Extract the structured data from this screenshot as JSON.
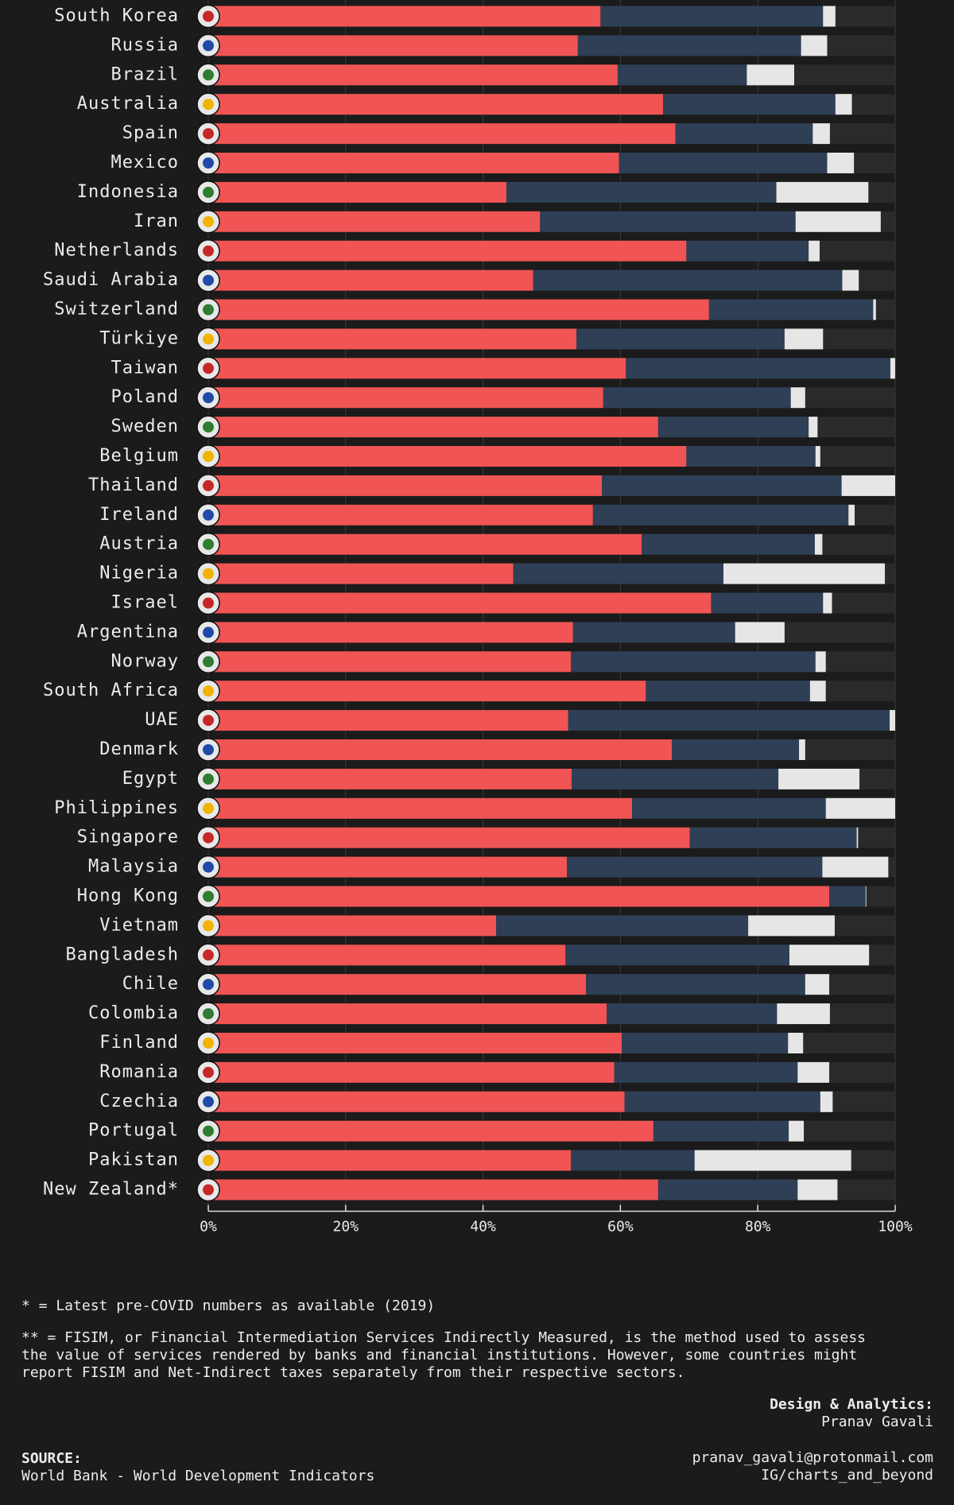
{
  "chart_data": {
    "type": "stacked-bar",
    "orientation": "horizontal",
    "categories": [
      "South Korea",
      "Russia",
      "Brazil",
      "Australia",
      "Spain",
      "Mexico",
      "Indonesia",
      "Iran",
      "Netherlands",
      "Saudi Arabia",
      "Switzerland",
      "Türkiye",
      "Taiwan",
      "Poland",
      "Sweden",
      "Belgium",
      "Thailand",
      "Ireland",
      "Austria",
      "Nigeria",
      "Israel",
      "Argentina",
      "Norway",
      "South Africa",
      "UAE",
      "Denmark",
      "Egypt",
      "Philippines",
      "Singapore",
      "Malaysia",
      "Hong Kong",
      "Vietnam",
      "Bangladesh",
      "Chile",
      "Colombia",
      "Finland",
      "Romania",
      "Czechia",
      "Portugal",
      "Pakistan",
      "New Zealand*"
    ],
    "series": [
      {
        "color": "#f05454",
        "values": [
          57.1,
          53.8,
          59.6,
          66.2,
          68.0,
          59.8,
          43.4,
          48.3,
          69.6,
          47.3,
          72.9,
          53.6,
          60.8,
          57.5,
          65.5,
          69.6,
          57.3,
          56.0,
          63.1,
          44.4,
          73.2,
          53.1,
          52.8,
          63.7,
          52.4,
          67.5,
          52.9,
          61.7,
          70.1,
          52.2,
          90.4,
          41.9,
          52.0,
          55.0,
          58.0,
          60.2,
          59.1,
          60.6,
          64.8,
          52.8,
          65.5
        ]
      },
      {
        "color": "#2e3f56",
        "values": [
          32.4,
          32.5,
          18.8,
          25.1,
          20.0,
          30.3,
          39.3,
          37.2,
          17.8,
          45.0,
          23.9,
          30.3,
          38.5,
          27.3,
          21.9,
          18.8,
          34.9,
          37.2,
          25.2,
          30.6,
          16.3,
          23.6,
          35.6,
          23.9,
          46.8,
          18.5,
          30.1,
          28.2,
          24.3,
          37.2,
          5.3,
          36.7,
          32.6,
          31.9,
          24.8,
          24.2,
          26.7,
          28.5,
          19.7,
          18.0,
          20.3
        ]
      },
      {
        "color": "#e6e6e6",
        "values": [
          1.8,
          3.8,
          6.9,
          2.4,
          2.5,
          3.9,
          13.4,
          12.4,
          1.6,
          2.4,
          0.4,
          5.6,
          0.7,
          2.1,
          1.3,
          0.7,
          7.8,
          0.9,
          1.1,
          23.5,
          1.3,
          7.2,
          1.5,
          2.3,
          0.8,
          0.9,
          11.8,
          10.1,
          0.2,
          9.6,
          0.1,
          12.6,
          11.6,
          3.5,
          7.7,
          2.2,
          4.6,
          1.8,
          2.2,
          22.8,
          5.8
        ]
      }
    ],
    "xlim": [
      0,
      100
    ],
    "xticks": [
      {
        "value": 0,
        "label": "0%"
      },
      {
        "value": 20,
        "label": "20%"
      },
      {
        "value": 40,
        "label": "40%"
      },
      {
        "value": 60,
        "label": "60%"
      },
      {
        "value": 80,
        "label": "80%"
      },
      {
        "value": 100,
        "label": "100%"
      }
    ],
    "grid": true,
    "footnotes": [
      "* = Latest pre-COVID numbers as available (2019)",
      "** = FISIM, or Financial Intermediation Services Indirectly Measured, is the method used to assess",
      "the value of services rendered by banks and financial institutions. However, some countries might",
      "report FISIM and Net-Indirect taxes separately from their respective sectors."
    ],
    "credit_label": "Design & Analytics:",
    "credit_name": "Pranav Gavali",
    "contact": [
      "pranav_gavali@protonmail.com",
      "IG/charts_and_beyond"
    ],
    "source_label": "SOURCE:",
    "source": "World Bank - World Development Indicators"
  }
}
